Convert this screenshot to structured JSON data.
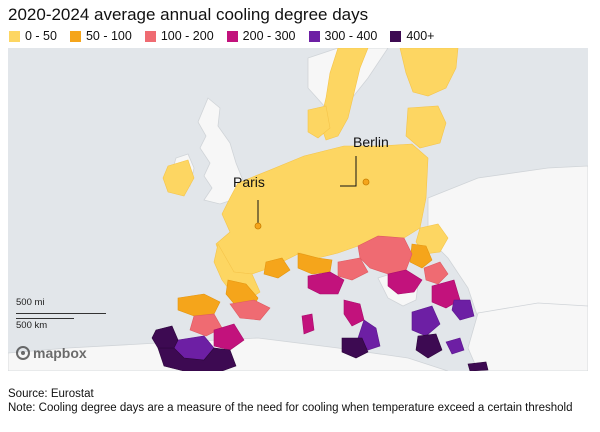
{
  "title": "2020-2024 average annual cooling degree days",
  "legend": [
    {
      "label": "0 - 50",
      "color": "#fdd662"
    },
    {
      "label": "50 - 100",
      "color": "#f5a51b"
    },
    {
      "label": "100 - 200",
      "color": "#ef6b72"
    },
    {
      "label": "200 - 300",
      "color": "#c2127c"
    },
    {
      "label": "300 - 400",
      "color": "#6d1fa4"
    },
    {
      "label": "400+",
      "color": "#3d0a52"
    }
  ],
  "map": {
    "water_color": "#e2e6ea",
    "land_color": "#f7f7f7",
    "cities": [
      {
        "name": "Paris"
      },
      {
        "name": "Berlin"
      }
    ],
    "scale": {
      "miles": "500 mi",
      "km": "500 km"
    },
    "attribution": "mapbox"
  },
  "footer": {
    "source": "Source: Eurostat",
    "note": "Note: Cooling degree days are a measure of the need for cooling when temperature exceed a certain threshold"
  }
}
